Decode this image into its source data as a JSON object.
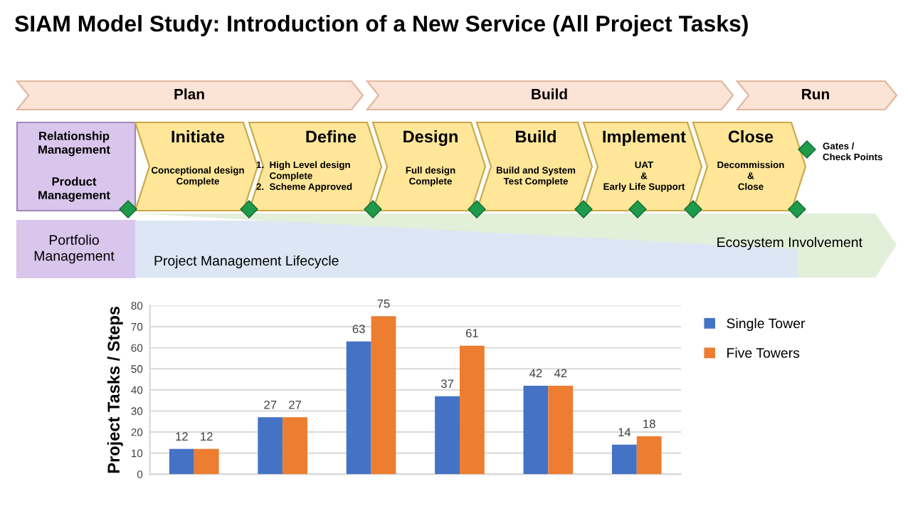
{
  "chart_data": [
    {
      "type": "other",
      "title": "SIAM Model Study: Introduction of a New Service (All Project Tasks)",
      "annotations": [
        "Plan",
        "Build",
        "Run",
        "Relationship\nManagement",
        "Product\nManagement",
        "Initiate",
        "Conceptional design\nComplete",
        "Define",
        "1.  High Level design\n     Complete\n2.  Scheme Approved",
        "Design",
        "Full design\nComplete",
        "Build",
        "Build and System\nTest Complete",
        "Implement",
        "UAT\n&\nEarly Life Support",
        "Close",
        "Decommission\n&\nClose",
        "Gates /\nCheck Points",
        "Portfolio\nManagement",
        "Project Management Lifecycle",
        "Ecosystem Involvement"
      ]
    },
    {
      "type": "bar",
      "ylabel": "Project Tasks / Steps",
      "categories": [
        null,
        null,
        null,
        null,
        null,
        null
      ],
      "series": [
        {
          "name": "Single Tower",
          "color": "#4472c4",
          "values": [
            12,
            27,
            63,
            37,
            42,
            14
          ]
        },
        {
          "name": "Five Towers",
          "color": "#ed7d31",
          "values": [
            12,
            27,
            75,
            61,
            42,
            18
          ]
        }
      ],
      "ylim": [
        0,
        80
      ],
      "yticks": [
        0,
        10,
        20,
        30,
        40,
        50,
        60,
        70,
        80
      ],
      "grid": "y",
      "legend": "top right",
      "data_labels": true
    }
  ]
}
